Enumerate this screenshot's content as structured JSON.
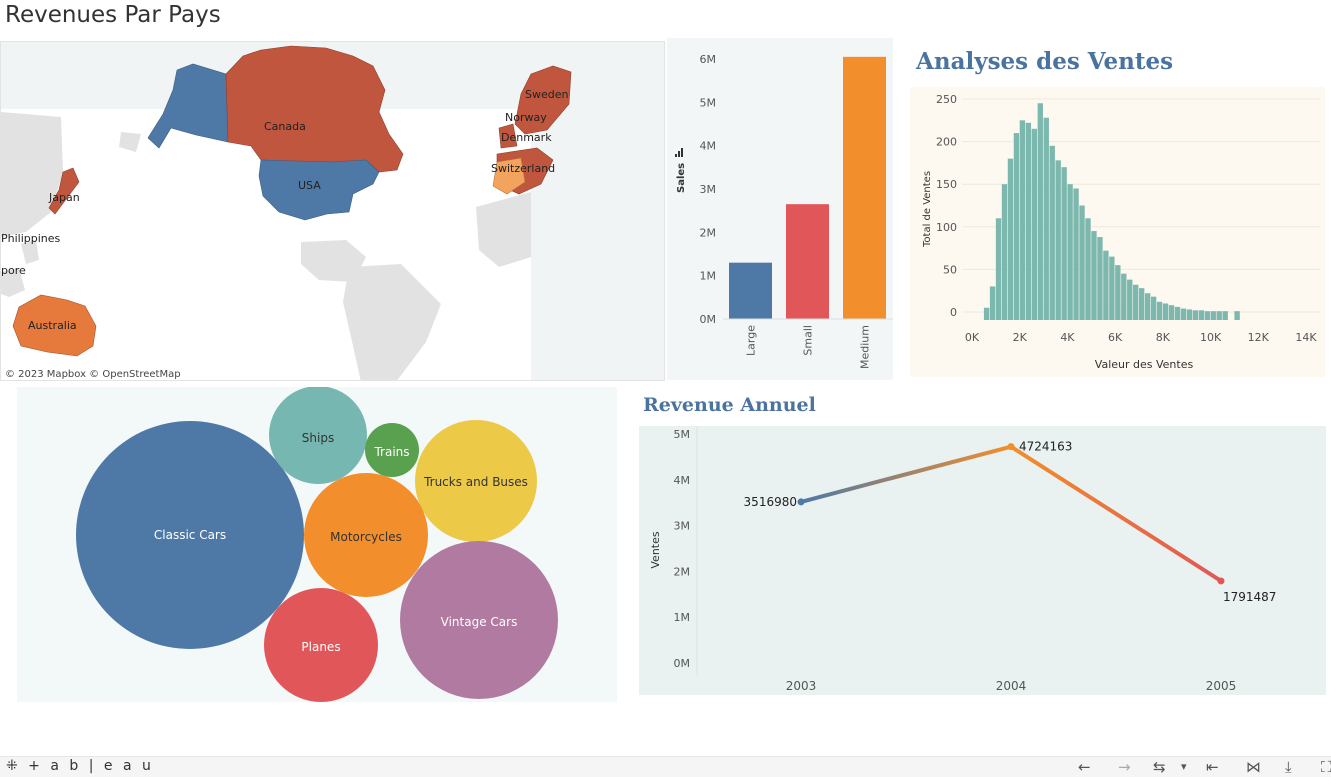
{
  "page": {
    "title": "Revenues Par Pays"
  },
  "map": {
    "attribution": "© 2023 Mapbox  © OpenStreetMap",
    "colors": {
      "usa": "#4e79a7",
      "canada": "#c1563e",
      "australia": "#e67a3d",
      "switzerland": "#f2a35d",
      "europe": "#c1563e",
      "japan": "#c1563e"
    },
    "labels": {
      "canada": "Canada",
      "usa": "USA",
      "japan": "Japan",
      "philippines": "Philippines",
      "singapore": "pore",
      "australia": "Australia",
      "sweden": "Sweden",
      "norway": "Norway",
      "denmark": "Denmark",
      "switzerland": "Switzerland"
    }
  },
  "histogram": {
    "title": "Analyses des Ventes",
    "bar_color": "#7db8ae"
  },
  "bubbles": {
    "items": [
      {
        "label": "Classic Cars",
        "color": "#4e79a7"
      },
      {
        "label": "Ships",
        "color": "#76b7b2"
      },
      {
        "label": "Trains",
        "color": "#59a14f"
      },
      {
        "label": "Trucks and Buses",
        "color": "#edc948"
      },
      {
        "label": "Motorcycles",
        "color": "#f28e2b"
      },
      {
        "label": "Vintage Cars",
        "color": "#b07aa1"
      },
      {
        "label": "Planes",
        "color": "#e15759"
      }
    ]
  },
  "line": {
    "title": "Revenue Annuel"
  },
  "chart_data": [
    {
      "type": "bar",
      "categories": [
        "Large",
        "Small",
        "Medium"
      ],
      "values": [
        1300000,
        2650000,
        6050000
      ],
      "colors": [
        "#4e79a7",
        "#e15759",
        "#f28e2b"
      ],
      "ylabel": "Sales",
      "ylim": [
        0,
        6300000
      ],
      "yticks": [
        0,
        1000000,
        2000000,
        3000000,
        4000000,
        5000000,
        6000000
      ],
      "ytick_labels": [
        "0M",
        "1M",
        "2M",
        "3M",
        "4M",
        "5M",
        "6M"
      ]
    },
    {
      "type": "bar",
      "title": "Analyses des Ventes",
      "xlabel": "Valeur des Ventes",
      "ylabel": "Total de Ventes",
      "x_start": 500,
      "bin_width": 250,
      "values": [
        5,
        30,
        110,
        150,
        180,
        210,
        225,
        222,
        215,
        245,
        228,
        195,
        178,
        170,
        150,
        145,
        125,
        110,
        95,
        88,
        72,
        65,
        55,
        45,
        38,
        32,
        28,
        22,
        18,
        12,
        10,
        8,
        6,
        4,
        3,
        2,
        2,
        1,
        1,
        1,
        1,
        0,
        1,
        0,
        0,
        0,
        0,
        0,
        0,
        0,
        0,
        0,
        0,
        0,
        0,
        0
      ],
      "xlim": [
        -500,
        15000
      ],
      "ylim": [
        -10,
        262
      ],
      "xticks": [
        0,
        2000,
        4000,
        6000,
        8000,
        10000,
        12000,
        14000
      ],
      "xtick_labels": [
        "0K",
        "2K",
        "4K",
        "6K",
        "8K",
        "10K",
        "12K",
        "14K"
      ],
      "yticks": [
        0,
        50,
        100,
        150,
        200,
        250
      ],
      "ytick_labels": [
        "0",
        "50",
        "100",
        "150",
        "200",
        "250"
      ],
      "grid": true
    },
    {
      "type": "bubble",
      "categories": [
        "Classic Cars",
        "Ships",
        "Trains",
        "Trucks and Buses",
        "Motorcycles",
        "Vintage Cars",
        "Planes"
      ]
    },
    {
      "type": "line",
      "title": "Revenue Annuel",
      "ylabel": "Ventes",
      "x": [
        "2003",
        "2004",
        "2005"
      ],
      "y": [
        3516980,
        4724163,
        1791487
      ],
      "data_labels": [
        "3516980",
        "4724163",
        "1791487"
      ],
      "ylim": [
        0,
        5100000
      ],
      "yticks": [
        0,
        1000000,
        2000000,
        3000000,
        4000000,
        5000000
      ],
      "ytick_labels": [
        "0M",
        "1M",
        "2M",
        "3M",
        "4M",
        "5M"
      ],
      "colors": [
        "#4e79a7",
        "#f28e2b",
        "#e15759"
      ]
    }
  ],
  "footer": {
    "logo": "⁜ + a b | e a u",
    "buttons": [
      "←",
      "→",
      "⇆",
      "▾",
      "⇤",
      "⋈",
      "⤓",
      "⛶"
    ]
  }
}
